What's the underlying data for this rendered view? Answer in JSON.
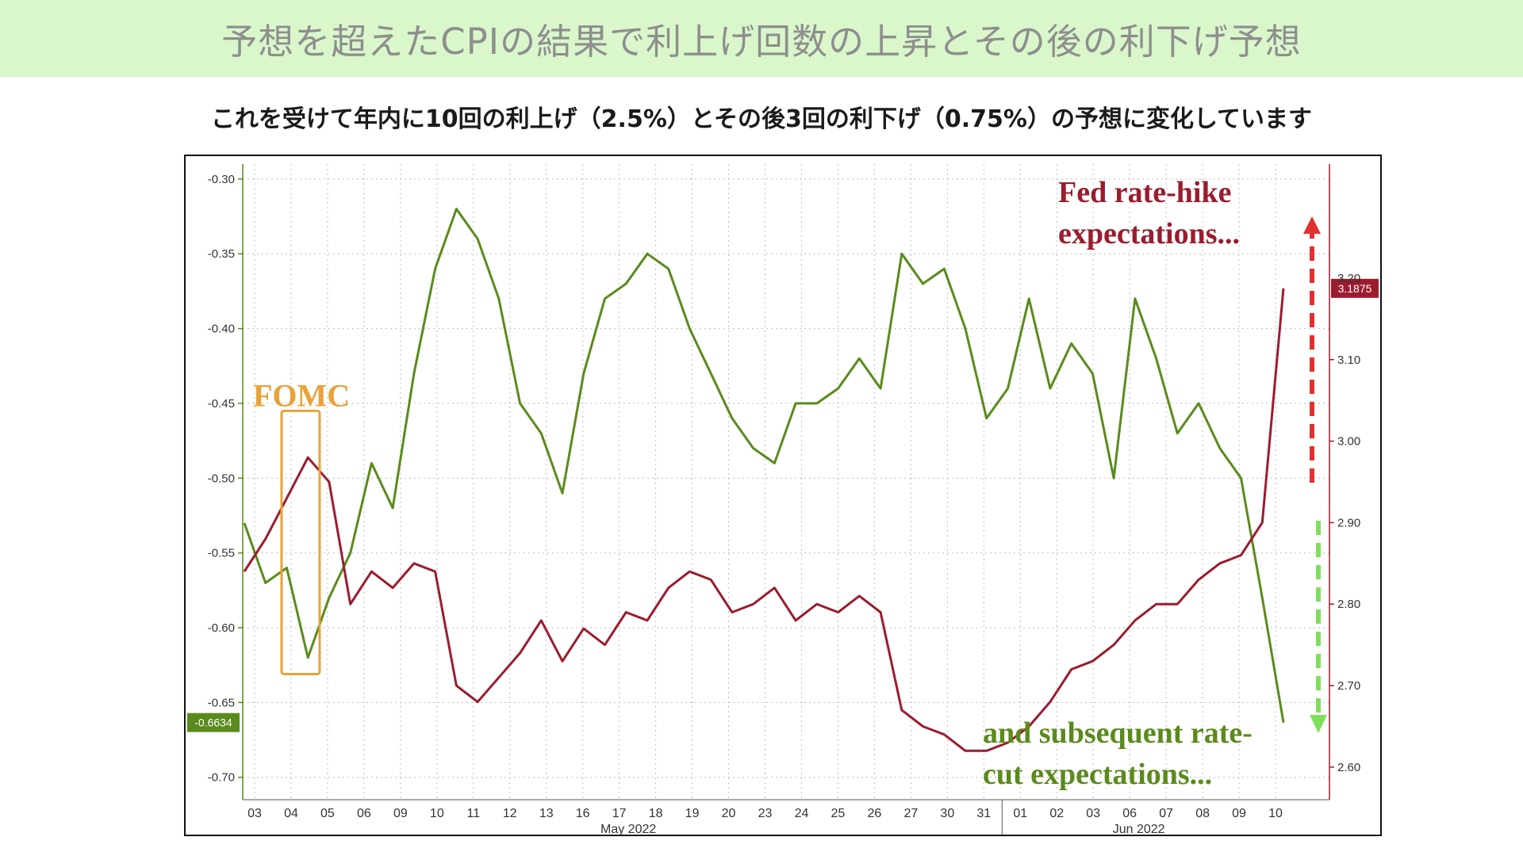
{
  "header": {
    "title": "予想を超えたCPIの結果で利上げ回数の上昇とその後の利下げ予想",
    "subtitle": "これを受けて年内に10回の利上げ（2.5%）とその後3回の利下げ（0.75%）の予想に変化しています"
  },
  "chart_data": {
    "type": "line",
    "x_tick_labels": [
      "03",
      "04",
      "05",
      "06",
      "09",
      "10",
      "11",
      "12",
      "13",
      "16",
      "17",
      "18",
      "19",
      "20",
      "23",
      "24",
      "25",
      "26",
      "27",
      "30",
      "31",
      "01",
      "02",
      "03",
      "06",
      "07",
      "08",
      "09",
      "10"
    ],
    "month_labels": [
      "May 2022",
      "Jun 2022"
    ],
    "left_axis": {
      "ticks": [
        "-0.30",
        "-0.35",
        "-0.40",
        "-0.45",
        "-0.50",
        "-0.55",
        "-0.60",
        "-0.65",
        "-0.70"
      ],
      "ylim": [
        -0.715,
        -0.29
      ]
    },
    "right_axis": {
      "ticks": [
        "3.10",
        "3.00",
        "2.90",
        "2.80",
        "2.70",
        "2.60"
      ],
      "ylim": [
        2.56,
        3.34
      ]
    },
    "series": [
      {
        "axis": "left",
        "color": "#5b8a1c",
        "last_value_label": "-0.6634",
        "values": [
          -0.53,
          -0.57,
          -0.56,
          -0.62,
          -0.58,
          -0.55,
          -0.49,
          -0.52,
          -0.43,
          -0.36,
          -0.32,
          -0.34,
          -0.38,
          -0.45,
          -0.47,
          -0.51,
          -0.43,
          -0.38,
          -0.37,
          -0.35,
          -0.36,
          -0.4,
          -0.43,
          -0.46,
          -0.48,
          -0.49,
          -0.45,
          -0.45,
          -0.44,
          -0.42,
          -0.44,
          -0.35,
          -0.37,
          -0.36,
          -0.4,
          -0.46,
          -0.44,
          -0.38,
          -0.44,
          -0.41,
          -0.43,
          -0.5,
          -0.38,
          -0.42,
          -0.47,
          -0.45,
          -0.48,
          -0.5,
          -0.58,
          -0.6634
        ]
      },
      {
        "axis": "right",
        "color": "#9b1c2e",
        "last_value_label": "3.1875",
        "values": [
          2.84,
          2.88,
          2.93,
          2.98,
          2.95,
          2.8,
          2.84,
          2.82,
          2.85,
          2.84,
          2.7,
          2.68,
          2.71,
          2.74,
          2.78,
          2.73,
          2.77,
          2.75,
          2.79,
          2.78,
          2.82,
          2.84,
          2.83,
          2.79,
          2.8,
          2.82,
          2.78,
          2.8,
          2.79,
          2.81,
          2.79,
          2.67,
          2.65,
          2.64,
          2.62,
          2.62,
          2.63,
          2.65,
          2.68,
          2.72,
          2.73,
          2.75,
          2.78,
          2.8,
          2.8,
          2.83,
          2.85,
          2.86,
          2.9,
          3.1875
        ]
      }
    ],
    "annotations": {
      "fomc": "FOMC",
      "hike_line1": "Fed rate-hike",
      "hike_line2": "expectations...",
      "cut_line1": "and subsequent rate-",
      "cut_line2": "cut expectations...",
      "hike_value": "3.20"
    },
    "colors": {
      "green": "#5b8a1c",
      "red": "#9b1c2e",
      "fomc": "#e8a23a",
      "arrow_red": "#e03030",
      "arrow_green": "#7ee05a"
    },
    "grid": true
  }
}
